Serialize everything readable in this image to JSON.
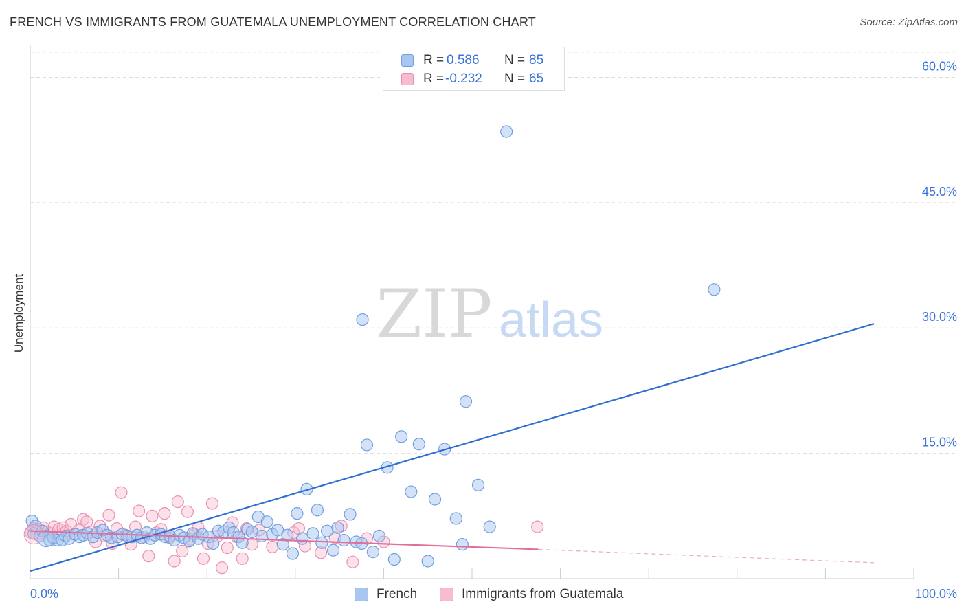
{
  "chart_data": {
    "type": "scatter",
    "title": "FRENCH VS IMMIGRANTS FROM GUATEMALA UNEMPLOYMENT CORRELATION CHART",
    "source": "Source: ZipAtlas.com",
    "xlabel": "",
    "ylabel": "Unemployment",
    "xlim": [
      0,
      100
    ],
    "ylim": [
      0,
      63
    ],
    "x_tick_labels": [
      "0.0%",
      "100.0%"
    ],
    "y_ticks": [
      {
        "value": 15,
        "label": "15.0%"
      },
      {
        "value": 30,
        "label": "30.0%"
      },
      {
        "value": 45,
        "label": "45.0%"
      },
      {
        "value": 60,
        "label": "60.0%"
      }
    ],
    "grid": true,
    "watermark": {
      "zip": "ZIP",
      "atlas": "atlas"
    },
    "colors": {
      "french_fill": "#a9c6f0",
      "french_stroke": "#6f9fe0",
      "french_line": "#2f6fd0",
      "guatemala_fill": "#f7bcd0",
      "guatemala_stroke": "#ea8fb0",
      "guatemala_line": "#e0709a",
      "axis_label": "#3b72d8"
    },
    "legend": {
      "position": "top-center",
      "r_label": "R =",
      "n_label": "N =",
      "entries": [
        {
          "series": "French",
          "r": "0.586",
          "n": "85"
        },
        {
          "series": "Immigrants from Guatemala",
          "r": "-0.232",
          "n": "65"
        }
      ]
    },
    "series": [
      {
        "name": "French",
        "trend": {
          "x0": 0,
          "y0": 0.9,
          "x1": 95.5,
          "y1": 30.5
        },
        "points": [
          [
            0.2,
            6.9
          ],
          [
            0.4,
            5.4
          ],
          [
            0.6,
            6.3
          ],
          [
            1.1,
            5.1
          ],
          [
            1.4,
            5.7
          ],
          [
            2.2,
            4.6
          ],
          [
            2.6,
            4.9
          ],
          [
            3.1,
            4.6
          ],
          [
            3.6,
            4.6
          ],
          [
            4.0,
            5.1
          ],
          [
            4.4,
            4.8
          ],
          [
            5.1,
            5.3
          ],
          [
            5.6,
            5.0
          ],
          [
            6.0,
            5.2
          ],
          [
            6.5,
            5.4
          ],
          [
            7.1,
            5.0
          ],
          [
            7.6,
            5.5
          ],
          [
            8.2,
            5.8
          ],
          [
            8.7,
            5.2
          ],
          [
            9.2,
            4.9
          ],
          [
            9.9,
            5.0
          ],
          [
            10.4,
            5.3
          ],
          [
            11.0,
            5.1
          ],
          [
            11.5,
            5.0
          ],
          [
            12.1,
            5.2
          ],
          [
            12.6,
            4.9
          ],
          [
            13.2,
            5.5
          ],
          [
            13.6,
            4.8
          ],
          [
            14.1,
            5.2
          ],
          [
            14.8,
            5.3
          ],
          [
            15.3,
            5.0
          ],
          [
            15.8,
            5.1
          ],
          [
            16.3,
            4.6
          ],
          [
            16.9,
            5.2
          ],
          [
            17.4,
            4.9
          ],
          [
            18.0,
            4.5
          ],
          [
            18.4,
            5.4
          ],
          [
            19.0,
            4.8
          ],
          [
            19.5,
            5.3
          ],
          [
            20.2,
            5.0
          ],
          [
            20.7,
            4.2
          ],
          [
            21.3,
            5.7
          ],
          [
            21.9,
            5.6
          ],
          [
            22.5,
            6.1
          ],
          [
            23.0,
            5.5
          ],
          [
            23.6,
            5.0
          ],
          [
            24.0,
            4.3
          ],
          [
            24.6,
            5.9
          ],
          [
            25.1,
            5.6
          ],
          [
            25.8,
            7.4
          ],
          [
            26.2,
            5.1
          ],
          [
            26.8,
            6.8
          ],
          [
            27.4,
            5.3
          ],
          [
            28.0,
            5.8
          ],
          [
            28.6,
            4.1
          ],
          [
            29.1,
            5.2
          ],
          [
            29.7,
            3.0
          ],
          [
            30.2,
            7.8
          ],
          [
            30.8,
            4.8
          ],
          [
            31.3,
            10.7
          ],
          [
            32.0,
            5.4
          ],
          [
            32.5,
            8.2
          ],
          [
            33.0,
            4.3
          ],
          [
            33.6,
            5.7
          ],
          [
            34.3,
            3.4
          ],
          [
            34.8,
            6.1
          ],
          [
            35.5,
            4.6
          ],
          [
            36.2,
            7.7
          ],
          [
            36.9,
            4.4
          ],
          [
            37.5,
            4.2
          ],
          [
            38.1,
            16.0
          ],
          [
            38.8,
            3.2
          ],
          [
            39.5,
            5.1
          ],
          [
            40.4,
            13.3
          ],
          [
            41.2,
            2.3
          ],
          [
            42.0,
            17.0
          ],
          [
            43.1,
            10.4
          ],
          [
            44.0,
            16.1
          ],
          [
            45.0,
            2.1
          ],
          [
            45.8,
            9.5
          ],
          [
            46.9,
            15.5
          ],
          [
            48.2,
            7.2
          ],
          [
            48.9,
            4.1
          ],
          [
            50.7,
            11.2
          ],
          [
            52.0,
            6.2
          ]
        ]
      },
      {
        "name": "Immigrants from Guatemala",
        "trend": {
          "x0": 0,
          "y0": 5.7,
          "x1": 57.5,
          "y1": 3.5,
          "dash_x1": 95.5,
          "dash_y1": 1.9
        },
        "points": [
          [
            0.1,
            5.5
          ],
          [
            0.4,
            6.0
          ],
          [
            0.7,
            5.3
          ],
          [
            1.1,
            5.8
          ],
          [
            1.5,
            6.1
          ],
          [
            1.9,
            5.6
          ],
          [
            2.3,
            5.4
          ],
          [
            2.7,
            6.2
          ],
          [
            3.2,
            5.9
          ],
          [
            3.7,
            6.1
          ],
          [
            4.1,
            5.7
          ],
          [
            4.6,
            6.5
          ],
          [
            5.0,
            5.3
          ],
          [
            5.5,
            5.8
          ],
          [
            6.0,
            7.1
          ],
          [
            6.4,
            6.8
          ],
          [
            6.9,
            5.6
          ],
          [
            7.4,
            4.4
          ],
          [
            7.9,
            6.3
          ],
          [
            8.4,
            5.1
          ],
          [
            8.9,
            7.6
          ],
          [
            9.3,
            4.2
          ],
          [
            9.8,
            6.0
          ],
          [
            10.3,
            10.3
          ],
          [
            10.8,
            5.2
          ],
          [
            11.4,
            4.1
          ],
          [
            11.9,
            6.2
          ],
          [
            12.3,
            8.1
          ],
          [
            12.9,
            5.0
          ],
          [
            13.4,
            2.7
          ],
          [
            13.8,
            7.5
          ],
          [
            14.3,
            5.5
          ],
          [
            14.8,
            5.9
          ],
          [
            15.2,
            7.8
          ],
          [
            15.8,
            4.9
          ],
          [
            16.3,
            2.1
          ],
          [
            16.7,
            9.2
          ],
          [
            17.2,
            3.3
          ],
          [
            17.8,
            8.0
          ],
          [
            18.1,
            4.7
          ],
          [
            18.6,
            5.3
          ],
          [
            19.0,
            6.1
          ],
          [
            19.6,
            2.4
          ],
          [
            20.1,
            4.2
          ],
          [
            20.6,
            9.0
          ],
          [
            21.2,
            5.1
          ],
          [
            21.7,
            1.3
          ],
          [
            22.3,
            3.7
          ],
          [
            22.9,
            6.7
          ],
          [
            23.4,
            5.0
          ],
          [
            24.0,
            2.4
          ],
          [
            24.5,
            6.0
          ],
          [
            25.1,
            4.1
          ],
          [
            25.9,
            5.8
          ],
          [
            27.4,
            3.8
          ],
          [
            29.8,
            5.5
          ],
          [
            30.4,
            6.0
          ],
          [
            31.1,
            3.9
          ],
          [
            32.9,
            3.1
          ],
          [
            34.5,
            4.9
          ],
          [
            35.2,
            6.3
          ],
          [
            36.5,
            2.0
          ],
          [
            38.1,
            4.8
          ],
          [
            40.0,
            4.4
          ],
          [
            57.4,
            6.2
          ]
        ]
      }
    ],
    "outliers_french": [
      [
        53.9,
        53.5
      ],
      [
        77.4,
        34.6
      ],
      [
        37.6,
        31.0
      ],
      [
        49.3,
        21.2
      ]
    ]
  }
}
